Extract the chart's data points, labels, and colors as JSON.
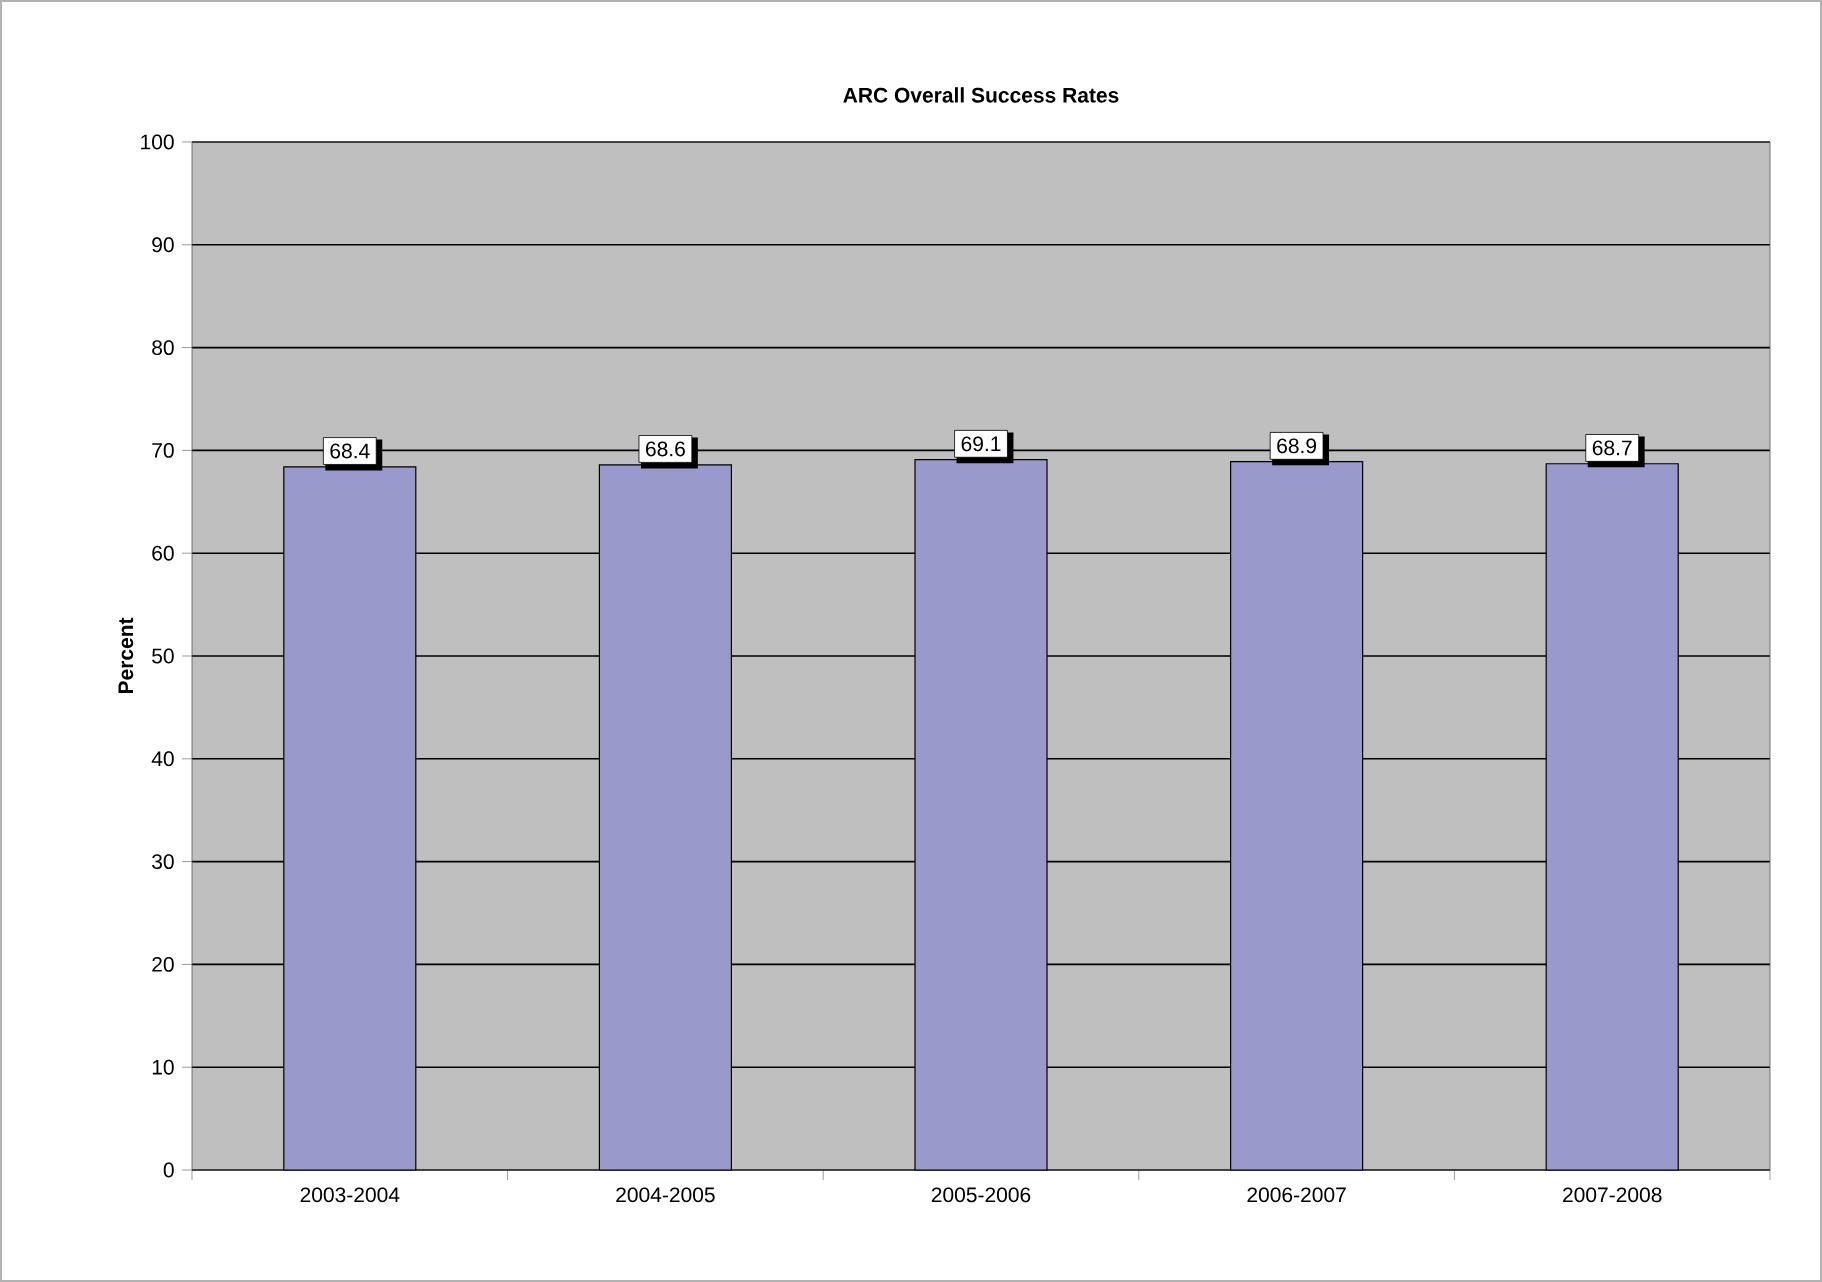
{
  "chart_data": {
    "type": "bar",
    "title": "ARC Overall Success Rates",
    "ylabel": "Percent",
    "categories": [
      "2003-2004",
      "2004-2005",
      "2005-2006",
      "2006-2007",
      "2007-2008"
    ],
    "values": [
      68.4,
      68.6,
      69.1,
      68.9,
      68.7
    ],
    "color": "#9999cc",
    "ylim": [
      0,
      100
    ],
    "yticks": [
      0,
      10,
      20,
      30,
      40,
      50,
      60,
      70,
      80,
      90,
      100
    ],
    "grid": "y",
    "data_labels": true
  }
}
